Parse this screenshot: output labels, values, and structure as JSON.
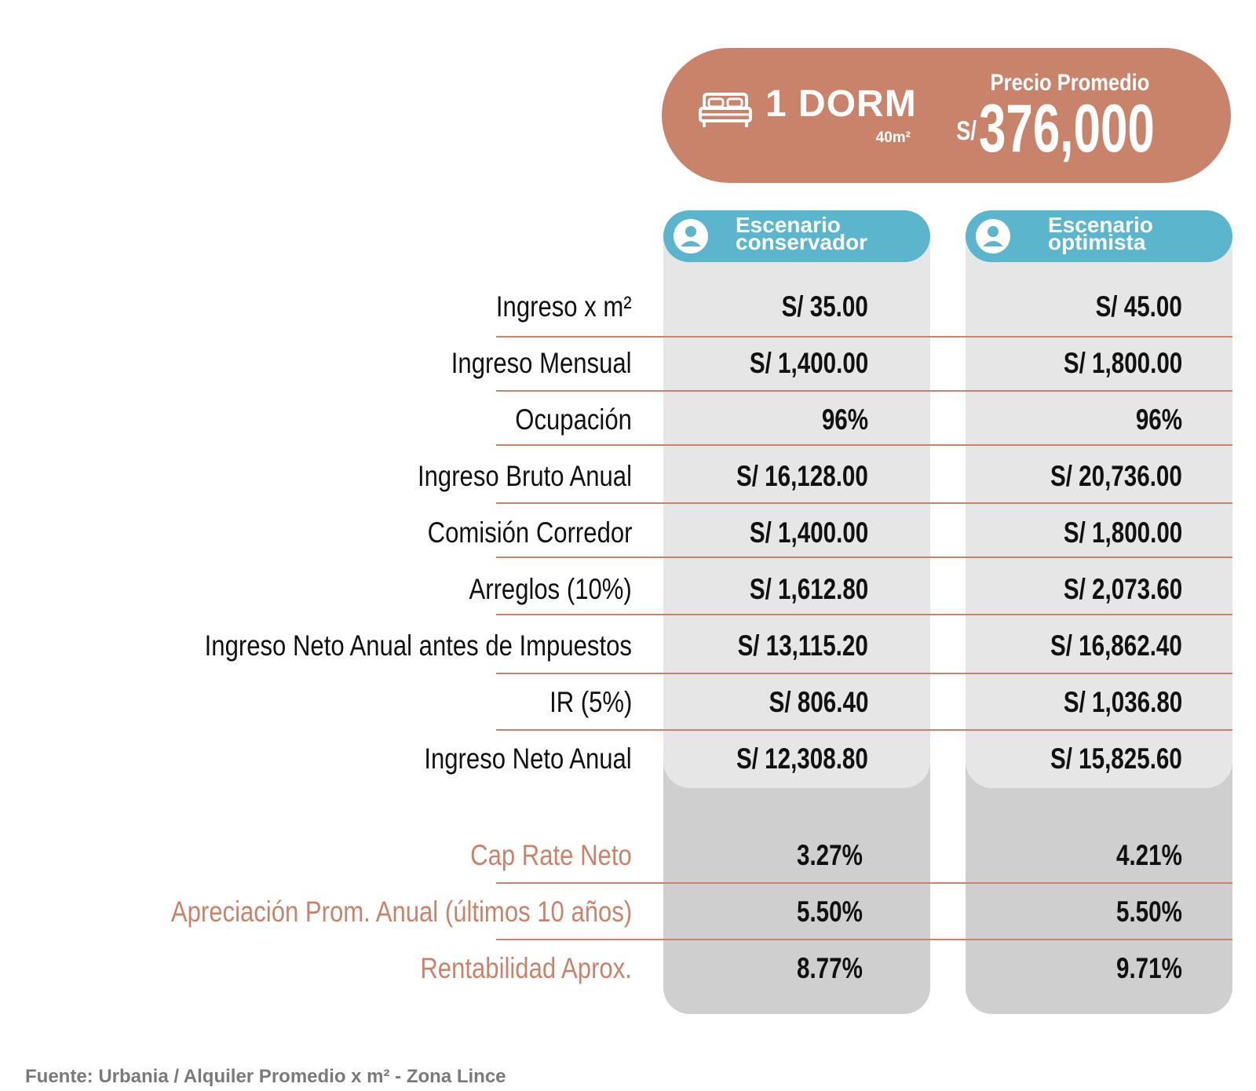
{
  "header": {
    "unit_title": "1 DORM",
    "unit_area": "40m²",
    "price_label": "Precio Promedio",
    "price_currency": "S/",
    "price_value": "376,000",
    "color": "#c9836b",
    "icon": "bed-icon"
  },
  "scenarios": [
    {
      "label_line1": "Escenario",
      "label_line2": "conservador",
      "icon": "person-icon",
      "color": "#5bb5cc"
    },
    {
      "label_line1": "Escenario",
      "label_line2": "optimista",
      "icon": "person-icon",
      "color": "#5bb5cc"
    }
  ],
  "rows": [
    {
      "label": "Ingreso x m²",
      "conservador": "S/ 35.00",
      "optimista": "S/ 45.00"
    },
    {
      "label": "Ingreso Mensual",
      "conservador": "S/ 1,400.00",
      "optimista": "S/ 1,800.00"
    },
    {
      "label": "Ocupación",
      "conservador": "96%",
      "optimista": "96%"
    },
    {
      "label": "Ingreso Bruto Anual",
      "conservador": "S/ 16,128.00",
      "optimista": "S/ 20,736.00"
    },
    {
      "label": "Comisión Corredor",
      "conservador": "S/ 1,400.00",
      "optimista": "S/ 1,800.00"
    },
    {
      "label": "Arreglos (10%)",
      "conservador": "S/ 1,612.80",
      "optimista": "S/ 2,073.60"
    },
    {
      "label": "Ingreso Neto Anual antes de Impuestos",
      "conservador": "S/ 13,115.20",
      "optimista": "S/ 16,862.40"
    },
    {
      "label": "IR (5%)",
      "conservador": "S/ 806.40",
      "optimista": "S/ 1,036.80"
    },
    {
      "label": "Ingreso Neto Anual",
      "conservador": "S/ 12,308.80",
      "optimista": "S/ 15,825.60"
    }
  ],
  "summary_rows": [
    {
      "label": "Cap Rate Neto",
      "conservador": "3.27%",
      "optimista": "4.21%"
    },
    {
      "label": "Apreciación Prom. Anual (últimos 10 años)",
      "conservador": "5.50%",
      "optimista": "5.50%"
    },
    {
      "label": "Rentabilidad Aprox.",
      "conservador": "8.77%",
      "optimista": "9.71%"
    }
  ],
  "footnote": "Fuente: Urbania / Alquiler Promedio x m² - Zona Lince"
}
